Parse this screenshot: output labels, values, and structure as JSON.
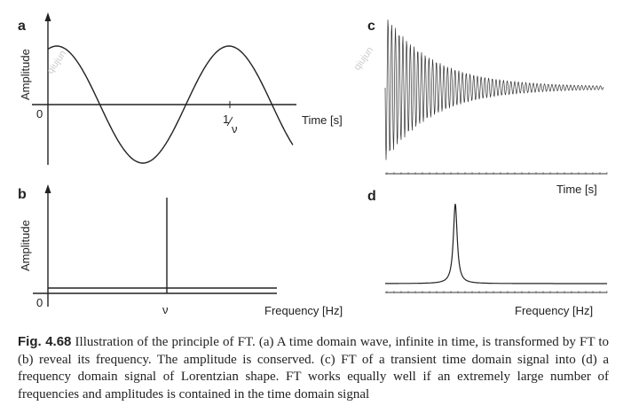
{
  "panels": {
    "a": {
      "letter": "a",
      "ylabel": "Amplitude",
      "zero": "0",
      "tick_label_num": "1",
      "tick_label_den": "ν",
      "xlabel": "Time [s]"
    },
    "b": {
      "letter": "b",
      "ylabel": "Amplitude",
      "zero": "0",
      "tick_label": "ν",
      "xlabel": "Frequency [Hz]"
    },
    "c": {
      "letter": "c",
      "xlabel": "Time [s]"
    },
    "d": {
      "letter": "d",
      "xlabel": "Frequency [Hz]"
    }
  },
  "watermark": "qiujun",
  "caption": {
    "label": "Fig. 4.68",
    "text": " Illustration of the principle of FT. (a) A time domain wave, infinite in time, is transformed by FT to (b) reveal its frequency. The amplitude is conserved. (c) FT of a transient time domain signal into (d) a frequency domain signal of Lorentzian shape. FT works equally well if an extremely large number of frequencies and amplitudes is contained in the time domain signal"
  }
}
